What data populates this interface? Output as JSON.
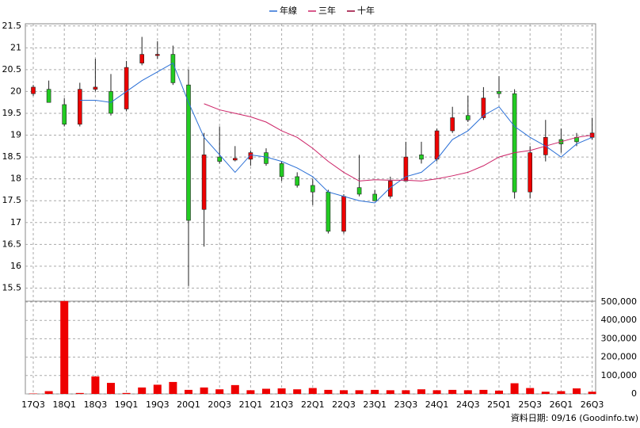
{
  "chart_data": {
    "type": "candlestick",
    "legend": "top",
    "grid": true,
    "up_color": "#ee0000",
    "down_color": "#22cc22",
    "categories": [
      "17Q3",
      null,
      "18Q1",
      null,
      "18Q3",
      null,
      "19Q1",
      null,
      "19Q3",
      null,
      "20Q1",
      null,
      "20Q3",
      null,
      "21Q1",
      null,
      "21Q3",
      null,
      "22Q1",
      null,
      "22Q3",
      null,
      "23Q1",
      null,
      "23Q3",
      null,
      "24Q1",
      null,
      "24Q3",
      null,
      "25Q1",
      null,
      "25Q3",
      null,
      "26Q1",
      null,
      "26Q3"
    ],
    "open": [
      19.95,
      20.05,
      19.7,
      19.25,
      20.05,
      20.0,
      19.6,
      20.65,
      20.83,
      20.85,
      20.15,
      17.3,
      18.5,
      18.43,
      18.45,
      18.6,
      18.35,
      18.05,
      17.85,
      17.7,
      16.8,
      17.8,
      17.65,
      17.6,
      17.95,
      18.55,
      18.45,
      19.1,
      19.45,
      19.4,
      20.0,
      19.95,
      17.7,
      18.55,
      18.9,
      18.95,
      18.95
    ],
    "high": [
      20.15,
      20.25,
      19.85,
      20.2,
      20.75,
      20.4,
      20.7,
      21.25,
      21.15,
      21.05,
      20.5,
      19.05,
      19.2,
      18.75,
      18.65,
      18.7,
      18.4,
      18.15,
      18.0,
      17.75,
      17.65,
      18.55,
      17.75,
      18.05,
      18.85,
      18.85,
      19.15,
      19.65,
      19.9,
      20.1,
      20.35,
      20.05,
      18.75,
      19.35,
      19.15,
      19.05,
      19.4
    ],
    "low": [
      19.9,
      19.75,
      19.2,
      19.2,
      20.0,
      19.45,
      19.55,
      20.6,
      20.75,
      20.15,
      15.55,
      16.45,
      18.35,
      18.4,
      18.3,
      18.3,
      17.95,
      17.8,
      17.4,
      16.75,
      16.75,
      17.6,
      17.5,
      17.55,
      17.95,
      18.35,
      18.4,
      19.05,
      19.3,
      19.35,
      19.85,
      17.55,
      17.55,
      18.4,
      18.6,
      18.75,
      18.9
    ],
    "close": [
      20.1,
      19.75,
      19.25,
      20.05,
      20.1,
      19.5,
      20.55,
      20.85,
      20.85,
      20.2,
      17.05,
      18.55,
      18.4,
      18.47,
      18.6,
      18.35,
      18.05,
      17.85,
      17.7,
      16.8,
      17.6,
      17.65,
      17.5,
      17.95,
      18.5,
      18.45,
      19.1,
      19.4,
      19.35,
      19.85,
      19.95,
      17.7,
      18.6,
      18.95,
      18.8,
      18.85,
      19.05
    ],
    "series": [
      {
        "name": "年線",
        "color": "#2a6fd6",
        "values": [
          null,
          null,
          null,
          19.8,
          19.8,
          19.75,
          20.0,
          20.25,
          20.45,
          20.65,
          19.75,
          18.95,
          18.55,
          18.15,
          18.55,
          18.5,
          18.4,
          18.25,
          18.05,
          17.7,
          17.6,
          17.5,
          17.45,
          17.8,
          18.05,
          18.15,
          18.45,
          18.9,
          19.1,
          19.45,
          19.65,
          19.2,
          18.95,
          18.75,
          18.5,
          18.8,
          18.95
        ]
      },
      {
        "name": "三年",
        "color": "#cc2266",
        "values": [
          null,
          null,
          null,
          null,
          null,
          null,
          null,
          null,
          null,
          null,
          null,
          19.72,
          19.58,
          19.5,
          19.42,
          19.3,
          19.1,
          18.95,
          18.7,
          18.4,
          18.15,
          17.95,
          17.98,
          17.97,
          17.97,
          17.95,
          18.0,
          18.07,
          18.15,
          18.3,
          18.5,
          18.6,
          18.65,
          18.75,
          18.85,
          18.95,
          19.0
        ]
      },
      {
        "name": "十年",
        "color": "#990033",
        "values": [
          null,
          null,
          null,
          null,
          null,
          null,
          null,
          null,
          null,
          null,
          null,
          null,
          null,
          null,
          null,
          null,
          null,
          null,
          null,
          null,
          null,
          null,
          null,
          null,
          null,
          null,
          null,
          null,
          null,
          null,
          null,
          null,
          null,
          null,
          null,
          null,
          null
        ]
      }
    ],
    "ylim": [
      15.2,
      21.55
    ],
    "yticks": [
      15.5,
      16,
      16.5,
      17,
      17.5,
      18,
      18.5,
      19,
      19.5,
      20,
      20.5,
      21,
      21.5
    ],
    "volume": {
      "type": "bar",
      "color": "#ee0000",
      "values": [
        2000,
        15000,
        505000,
        5000,
        95000,
        60000,
        5000,
        35000,
        50000,
        65000,
        22000,
        35000,
        25000,
        48000,
        20000,
        28000,
        30000,
        25000,
        32000,
        22000,
        20000,
        20000,
        22000,
        20000,
        20000,
        25000,
        20000,
        22000,
        20000,
        22000,
        18000,
        58000,
        32000,
        12000,
        15000,
        30000,
        12000
      ],
      "ylim": [
        0,
        500000
      ],
      "yticks": [
        0,
        {
          "value": 100000,
          "label": "100,000"
        },
        {
          "value": 200000,
          "label": "200,000"
        },
        {
          "value": 300000,
          "label": "300,000"
        },
        {
          "value": 400000,
          "label": "400,000"
        },
        {
          "value": 500000,
          "label": "500,000"
        }
      ]
    },
    "footnote": "資料日期: 09/16  (Goodinfo.tw)"
  }
}
